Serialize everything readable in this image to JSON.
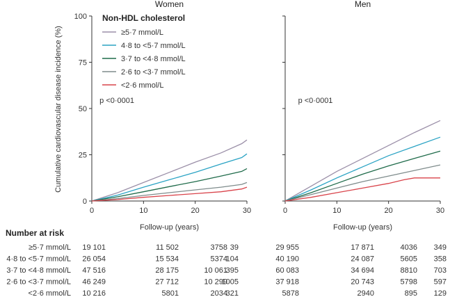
{
  "figure": {
    "ylabel": "Cumulative cardiovascular disease incidence (%)",
    "xlabel": "Follow-up (years)",
    "legend_title": "Non-HDL cholesterol",
    "risk_title": "Number at risk"
  },
  "colors": {
    "ge5.7": "#9b8fa8",
    "4.8-5.7": "#2aa3c4",
    "3.7-4.8": "#1f6b4a",
    "2.6-3.7": "#7f8c8c",
    "lt2.6": "#d9434a",
    "axis": "#333333"
  },
  "chart_data": [
    {
      "type": "line",
      "title": "Women",
      "annotation": "p <0·0001",
      "xlim": [
        0,
        30
      ],
      "ylim": [
        0,
        100
      ],
      "xticks": [
        0,
        10,
        20,
        30
      ],
      "yticks": [
        0,
        25,
        50,
        75,
        100
      ],
      "series": [
        {
          "name": "≥5·7 mmol/L",
          "key": "ge5.7",
          "x": [
            0,
            5,
            10,
            15,
            20,
            25,
            29,
            30
          ],
          "y": [
            0,
            4.5,
            10,
            15.5,
            21,
            26,
            31,
            33
          ]
        },
        {
          "name": "4·8 to <5·7 mmol/L",
          "key": "4.8-5.7",
          "x": [
            0,
            5,
            10,
            15,
            20,
            25,
            29,
            30
          ],
          "y": [
            0,
            3.2,
            7.5,
            11.5,
            15.5,
            20,
            23.5,
            25.5
          ]
        },
        {
          "name": "3·7 to <4·8 mmol/L",
          "key": "3.7-4.8",
          "x": [
            0,
            5,
            10,
            15,
            20,
            25,
            29,
            30
          ],
          "y": [
            0,
            2.3,
            5,
            7.8,
            10.5,
            13.5,
            16,
            17.5
          ]
        },
        {
          "name": "2·6 to <3·7 mmol/L",
          "key": "2.6-3.7",
          "x": [
            0,
            5,
            10,
            15,
            20,
            25,
            29,
            30
          ],
          "y": [
            0,
            1.3,
            3,
            4.5,
            6,
            7.5,
            9,
            10
          ]
        },
        {
          "name": "<2·6 mmol/L",
          "key": "lt2.6",
          "x": [
            0,
            5,
            10,
            15,
            20,
            25,
            29,
            30
          ],
          "y": [
            0,
            0.8,
            2,
            3,
            4,
            5,
            6.5,
            7.5
          ]
        }
      ]
    },
    {
      "type": "line",
      "title": "Men",
      "annotation": "p <0·0001",
      "xlim": [
        0,
        30
      ],
      "ylim": [
        0,
        100
      ],
      "xticks": [
        0,
        10,
        20,
        30
      ],
      "yticks": [
        0,
        25,
        50,
        75,
        100
      ],
      "series": [
        {
          "name": "≥5·7 mmol/L",
          "key": "ge5.7",
          "x": [
            0,
            5,
            10,
            15,
            20,
            25,
            30
          ],
          "y": [
            0,
            8,
            16,
            23,
            30,
            37,
            43.5
          ]
        },
        {
          "name": "4·8 to <5·7 mmol/L",
          "key": "4.8-5.7",
          "x": [
            0,
            5,
            10,
            15,
            20,
            25,
            30
          ],
          "y": [
            0,
            6,
            12.5,
            18.5,
            24.5,
            29.5,
            34.5
          ]
        },
        {
          "name": "3·7 to <4·8 mmol/L",
          "key": "3.7-4.8",
          "x": [
            0,
            5,
            10,
            15,
            20,
            25,
            30
          ],
          "y": [
            0,
            4.5,
            9.5,
            14.5,
            19,
            23,
            27
          ]
        },
        {
          "name": "2·6 to <3·7 mmol/L",
          "key": "2.6-3.7",
          "x": [
            0,
            5,
            10,
            15,
            20,
            25,
            30
          ],
          "y": [
            0,
            3.5,
            7,
            10.5,
            13.5,
            16.5,
            19.5
          ]
        },
        {
          "name": "<2·6 mmol/L",
          "key": "lt2.6",
          "x": [
            0,
            5,
            10,
            15,
            20,
            23,
            25,
            30
          ],
          "y": [
            0,
            2,
            4.5,
            7,
            9.5,
            11.5,
            12.5,
            12.5
          ]
        }
      ]
    }
  ],
  "risk_table": {
    "rows": [
      {
        "label": "≥5·7 mmol/L",
        "women": [
          "19 101",
          "11 502",
          "3758",
          "39"
        ],
        "men": [
          "29 955",
          "17 871",
          "4036",
          "349"
        ]
      },
      {
        "label": "4·8 to <5·7 mmol/L",
        "women": [
          "26 054",
          "15 534",
          "5374",
          "104"
        ],
        "men": [
          "40 190",
          "24 087",
          "5605",
          "358"
        ]
      },
      {
        "label": "3·7 to <4·8 mmol/L",
        "women": [
          "47 516",
          "28 175",
          "10 061",
          "395"
        ],
        "men": [
          "60 083",
          "34 694",
          "8810",
          "703"
        ]
      },
      {
        "label": "2·6 to <3·7 mmol/L",
        "women": [
          "46 249",
          "27 712",
          "10 299",
          "1005"
        ],
        "men": [
          "37 918",
          "20 743",
          "5798",
          "597"
        ]
      },
      {
        "label": "<2·6 mmol/L",
        "women": [
          "10 216",
          "5801",
          "2034",
          "321"
        ],
        "men": [
          "5878",
          "2940",
          "895",
          "129"
        ]
      }
    ]
  }
}
